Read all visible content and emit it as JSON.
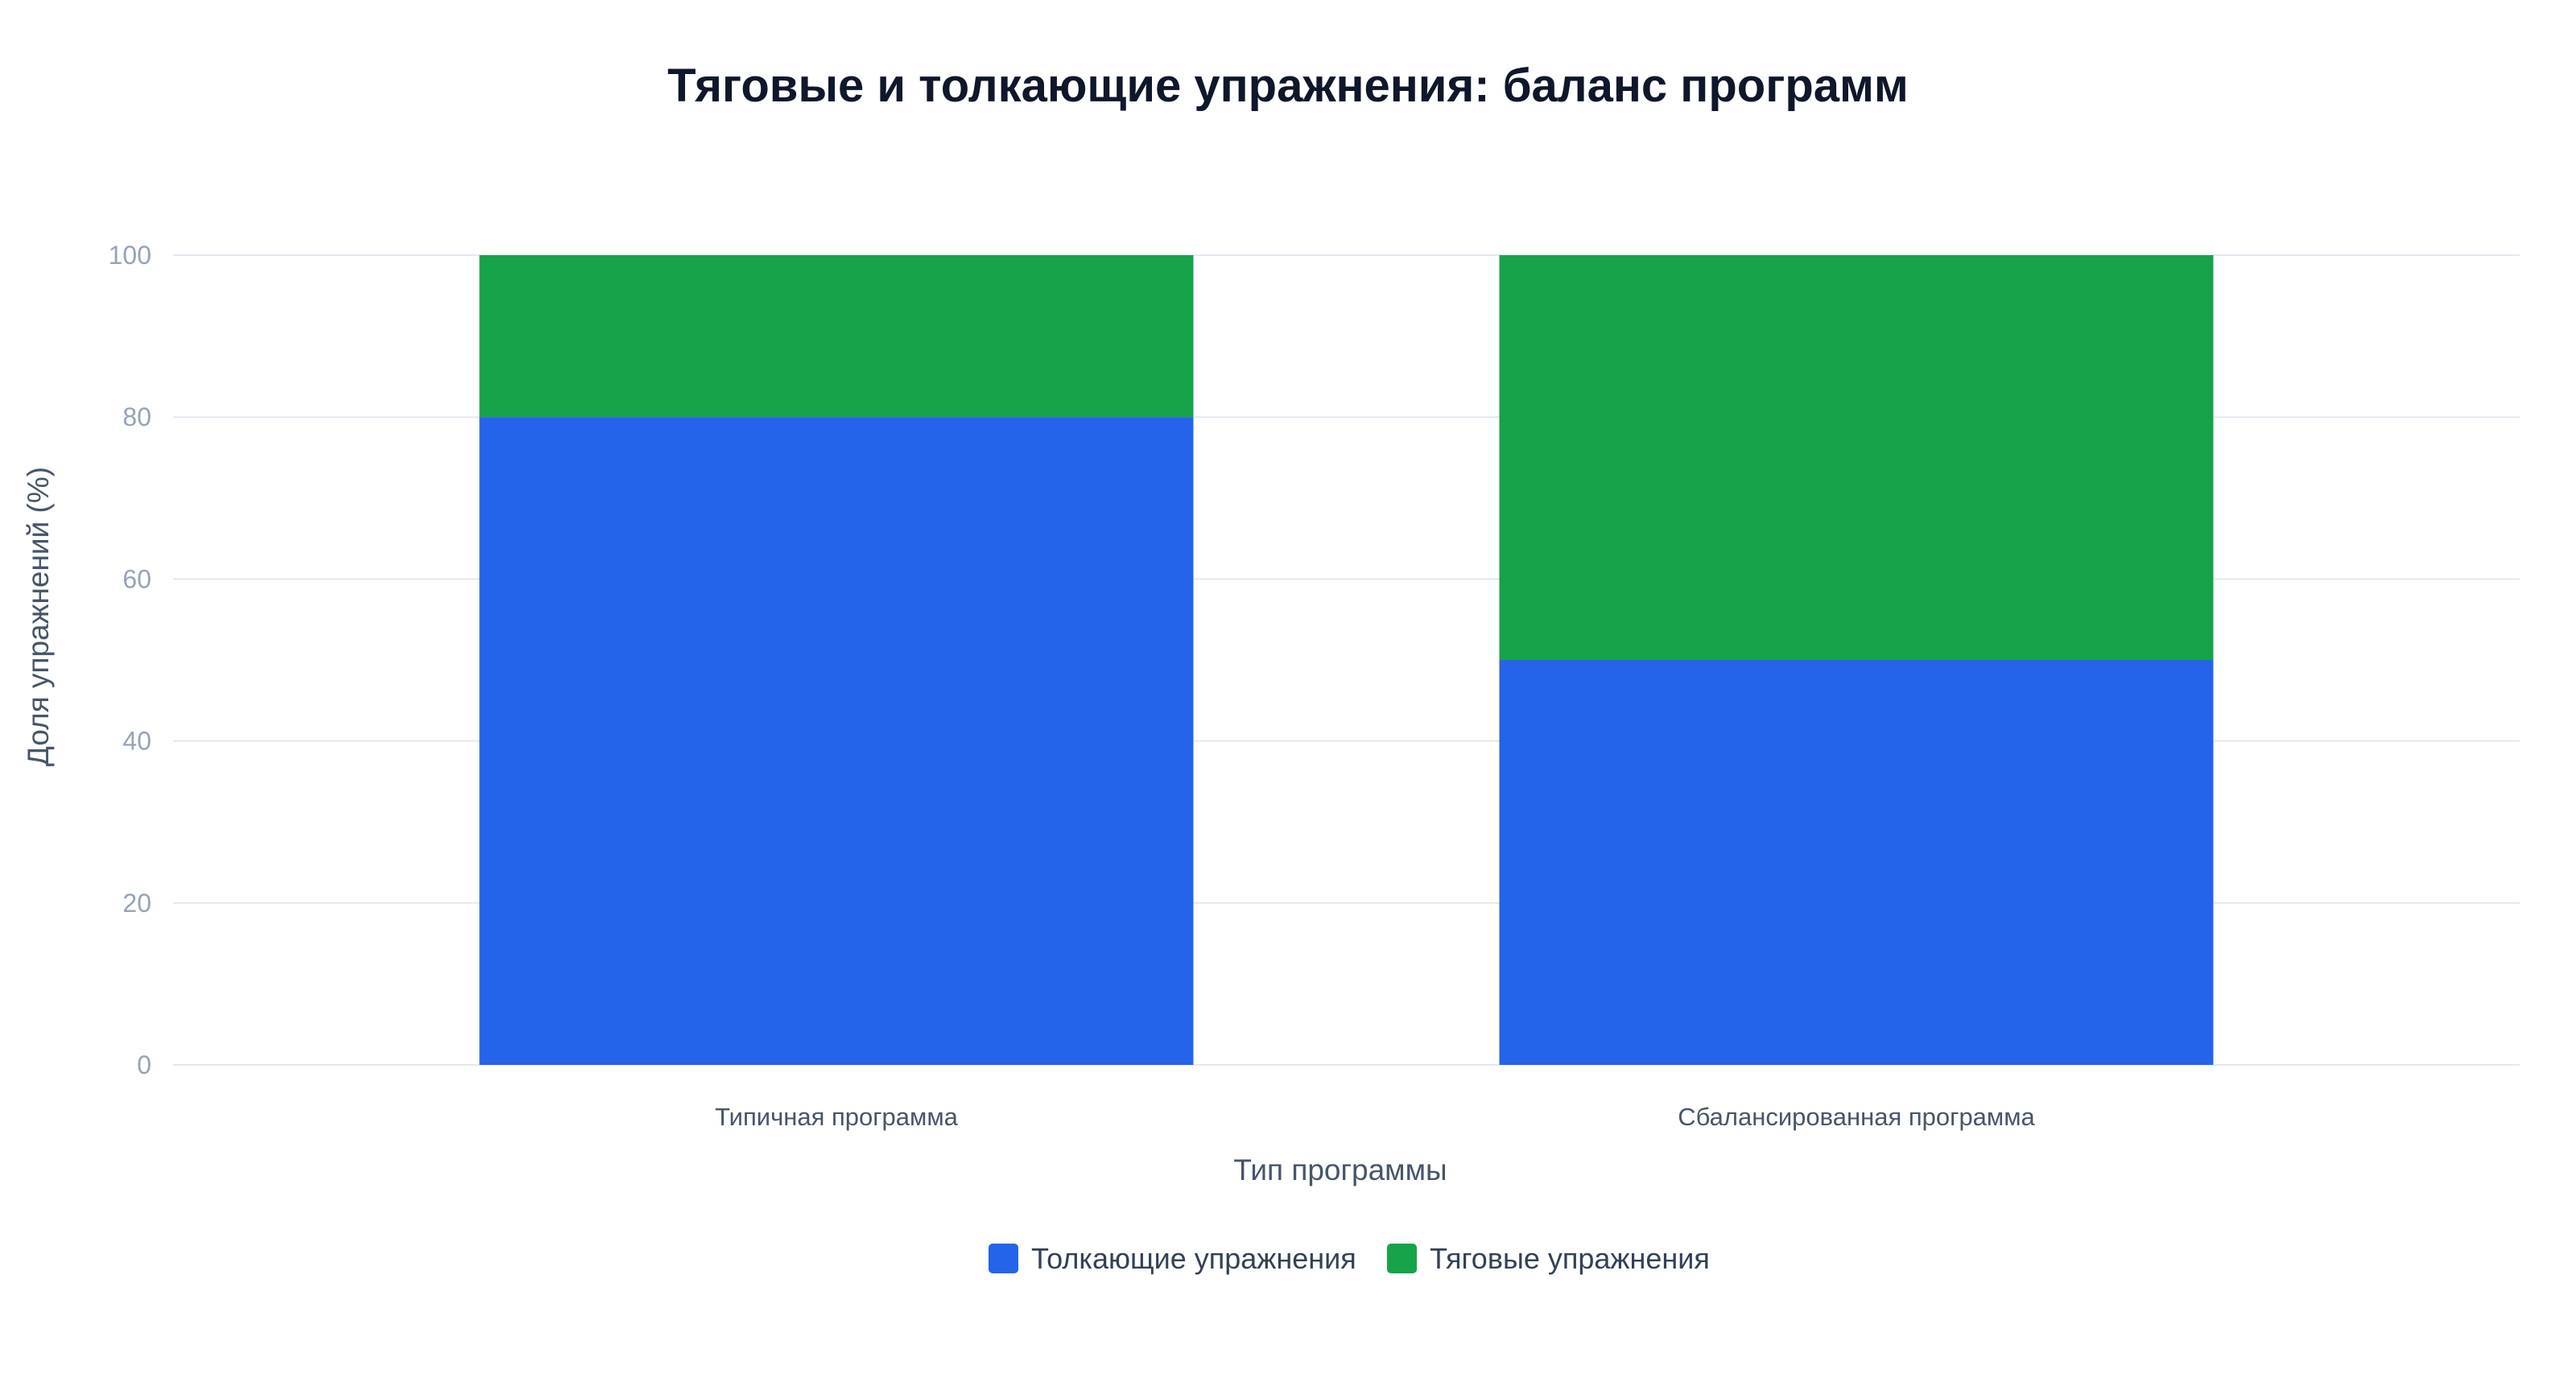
{
  "chart_data": {
    "type": "bar",
    "stacked": true,
    "title": "Тяговые и толкающие упражнения: баланс программ",
    "xlabel": "Тип программы",
    "ylabel": "Доля упражнений (%)",
    "categories": [
      "Типичная программа",
      "Сбалансированная программа"
    ],
    "series": [
      {
        "name": "Толкающие упражнения",
        "values": [
          80,
          50
        ],
        "color": "#2563eb"
      },
      {
        "name": "Тяговые упражнения",
        "values": [
          20,
          50
        ],
        "color": "#16a34a"
      }
    ],
    "ylim": [
      0,
      100
    ],
    "yticks": [
      0,
      20,
      40,
      60,
      80,
      100
    ],
    "grid": true,
    "legend_position": "bottom-center"
  }
}
